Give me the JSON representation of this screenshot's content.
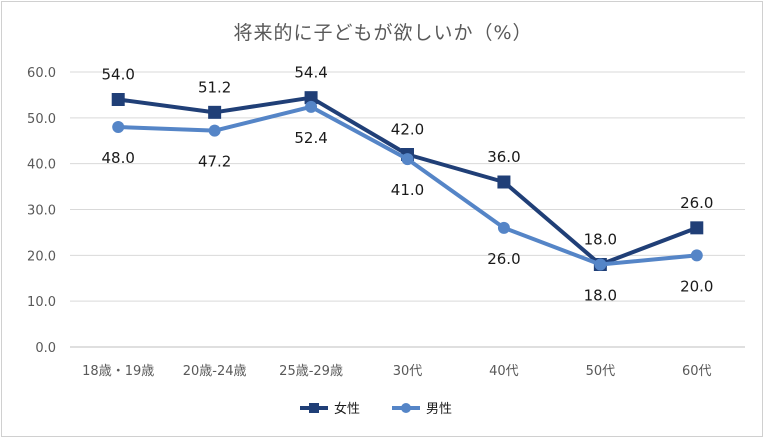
{
  "chart_data": {
    "type": "line",
    "title": "将来的に子どもが欲しいか（%）",
    "categories": [
      "18歳・19歳",
      "20歳-24歳",
      "25歳-29歳",
      "30代",
      "40代",
      "50代",
      "60代"
    ],
    "series": [
      {
        "name": "女性",
        "values": [
          54.0,
          51.2,
          54.4,
          42.0,
          36.0,
          18.0,
          26.0
        ],
        "color": "#203f77",
        "marker": "square"
      },
      {
        "name": "男性",
        "values": [
          48.0,
          47.2,
          52.4,
          41.0,
          26.0,
          18.0,
          20.0
        ],
        "color": "#5585c7",
        "marker": "circle"
      }
    ],
    "ylim": [
      0,
      60
    ],
    "yticks": [
      "0.0",
      "10.0",
      "20.0",
      "30.0",
      "40.0",
      "50.0",
      "60.0"
    ],
    "grid": true,
    "legend": "bottom"
  }
}
